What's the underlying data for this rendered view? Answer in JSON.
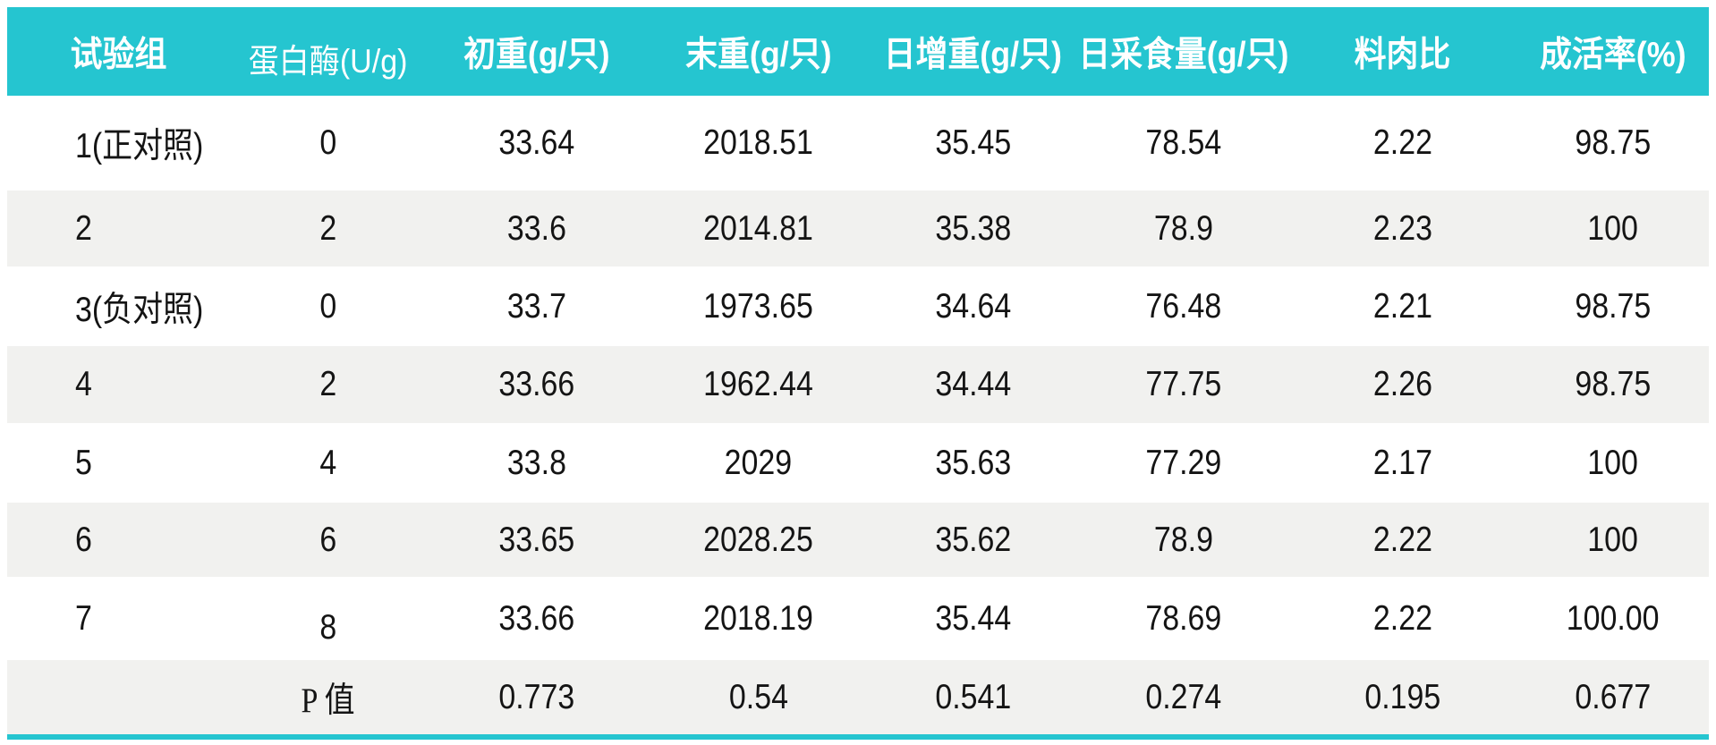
{
  "colors": {
    "header_bg": "#25c5d0",
    "header_text": "#ffffff",
    "stripe_bg": "#f1f1ef",
    "row_bg": "#ffffff",
    "text": "#141414",
    "accent_rule": "#25c5d0",
    "page_bg": "#ffffff"
  },
  "table": {
    "headers": [
      "试验组",
      "蛋白酶(U/g)",
      "初重(g/只)",
      "末重(g/只)",
      "日增重(g/只)",
      "日采食量(g/只)",
      "料肉比",
      "成活率(%)"
    ],
    "rows": [
      [
        "1(正对照)",
        "0",
        "33.64",
        "2018.51",
        "35.45",
        "78.54",
        "2.22",
        "98.75"
      ],
      [
        "2",
        "2",
        "33.6",
        "2014.81",
        "35.38",
        "78.9",
        "2.23",
        "100"
      ],
      [
        "3(负对照)",
        "0",
        "33.7",
        "1973.65",
        "34.64",
        "76.48",
        "2.21",
        "98.75"
      ],
      [
        "4",
        "2",
        "33.66",
        "1962.44",
        "34.44",
        "77.75",
        "2.26",
        "98.75"
      ],
      [
        "5",
        "4",
        "33.8",
        "2029",
        "35.63",
        "77.29",
        "2.17",
        "100"
      ],
      [
        "6",
        "6",
        "33.65",
        "2028.25",
        "35.62",
        "78.9",
        "2.22",
        "100"
      ],
      [
        "7",
        "8",
        "33.66",
        "2018.19",
        "35.44",
        "78.69",
        "2.22",
        "100.00"
      ],
      [
        "",
        "P 值",
        "0.773",
        "0.54",
        "0.541",
        "0.274",
        "0.195",
        "0.677"
      ]
    ]
  },
  "chart_data": {
    "type": "table",
    "columns": [
      "试验组",
      "蛋白酶(U/g)",
      "初重(g/只)",
      "末重(g/只)",
      "日增重(g/只)",
      "日采食量(g/只)",
      "料肉比",
      "成活率(%)"
    ],
    "rows": [
      {
        "试验组": "1(正对照)",
        "蛋白酶(U/g)": 0,
        "初重(g/只)": 33.64,
        "末重(g/只)": 2018.51,
        "日增重(g/只)": 35.45,
        "日采食量(g/只)": 78.54,
        "料肉比": 2.22,
        "成活率(%)": 98.75
      },
      {
        "试验组": "2",
        "蛋白酶(U/g)": 2,
        "初重(g/只)": 33.6,
        "末重(g/只)": 2014.81,
        "日增重(g/只)": 35.38,
        "日采食量(g/只)": 78.9,
        "料肉比": 2.23,
        "成活率(%)": 100
      },
      {
        "试验组": "3(负对照)",
        "蛋白酶(U/g)": 0,
        "初重(g/只)": 33.7,
        "末重(g/只)": 1973.65,
        "日增重(g/只)": 34.64,
        "日采食量(g/只)": 76.48,
        "料肉比": 2.21,
        "成活率(%)": 98.75
      },
      {
        "试验组": "4",
        "蛋白酶(U/g)": 2,
        "初重(g/只)": 33.66,
        "末重(g/只)": 1962.44,
        "日增重(g/只)": 34.44,
        "日采食量(g/只)": 77.75,
        "料肉比": 2.26,
        "成活率(%)": 98.75
      },
      {
        "试验组": "5",
        "蛋白酶(U/g)": 4,
        "初重(g/只)": 33.8,
        "末重(g/只)": 2029,
        "日增重(g/只)": 35.63,
        "日采食量(g/只)": 77.29,
        "料肉比": 2.17,
        "成活率(%)": 100
      },
      {
        "试验组": "6",
        "蛋白酶(U/g)": 6,
        "初重(g/只)": 33.65,
        "末重(g/只)": 2028.25,
        "日增重(g/只)": 35.62,
        "日采食量(g/只)": 78.9,
        "料肉比": 2.22,
        "成活率(%)": 100
      },
      {
        "试验组": "7",
        "蛋白酶(U/g)": 8,
        "初重(g/只)": 33.66,
        "末重(g/只)": 2018.19,
        "日增重(g/只)": 35.44,
        "日采食量(g/只)": 78.69,
        "料肉比": 2.22,
        "成活率(%)": 100.0
      },
      {
        "试验组": "P 值",
        "蛋白酶(U/g)": null,
        "初重(g/只)": 0.773,
        "末重(g/只)": 0.54,
        "日增重(g/只)": 0.541,
        "日采食量(g/只)": 0.274,
        "料肉比": 0.195,
        "成活率(%)": 0.677
      }
    ],
    "title": "",
    "notes": "striped experiment-results table; teal header band and teal bottom rule"
  }
}
